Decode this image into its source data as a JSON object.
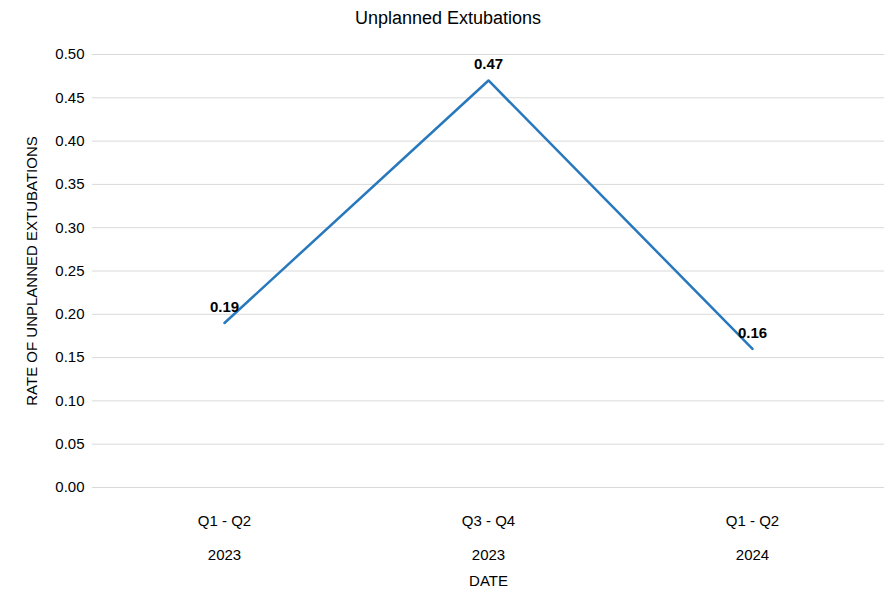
{
  "chart_data": {
    "type": "line",
    "title": "Unplanned Extubations",
    "x_label": "DATE",
    "y_label": "RATE OF UNPLANNED EXTUBATIONS",
    "categories": [
      "Q1 - Q2\n2023",
      "Q3 - Q4\n2023",
      "Q1 - Q2\n2024"
    ],
    "values": [
      0.19,
      0.47,
      0.16
    ],
    "color": "#2878bd",
    "ylim": [
      0,
      0.5
    ],
    "yticks": [
      {
        "value": 0,
        "label": "0.00"
      },
      {
        "value": 0.05,
        "label": "0.05"
      },
      {
        "value": 0.1,
        "label": "0.10"
      },
      {
        "value": 0.15,
        "label": "0.15"
      },
      {
        "value": 0.2,
        "label": "0.20"
      },
      {
        "value": 0.25,
        "label": "0.25"
      },
      {
        "value": 0.3,
        "label": "0.30"
      },
      {
        "value": 0.35,
        "label": "0.35"
      },
      {
        "value": 0.4,
        "label": "0.40"
      },
      {
        "value": 0.45,
        "label": "0.45"
      },
      {
        "value": 0.5,
        "label": "0.50"
      }
    ],
    "grid": true,
    "data_labels": true
  }
}
